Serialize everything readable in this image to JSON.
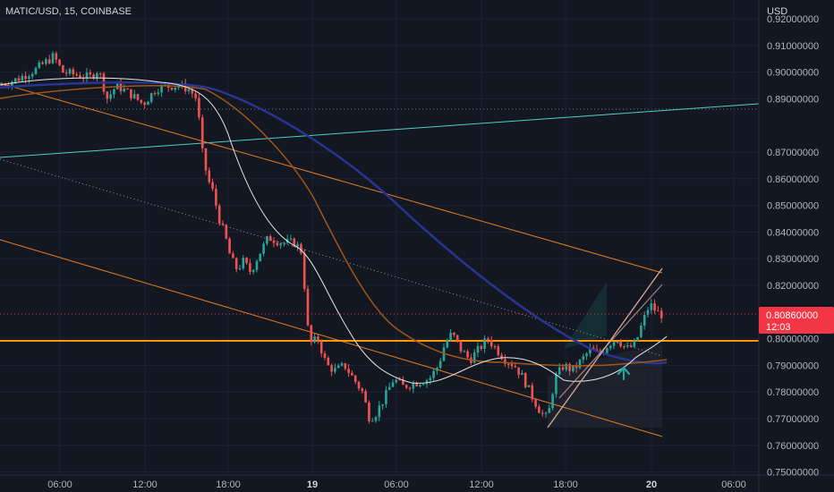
{
  "header": {
    "symbol_title": "MATIC/USD, 15, COINBASE",
    "currency": "USD"
  },
  "price_axis": {
    "labels": [
      "0.92000000",
      "0.91000000",
      "0.90000000",
      "0.89000000",
      "0.87000000",
      "0.86000000",
      "0.85000000",
      "0.84000000",
      "0.83000000",
      "0.82000000",
      "0.80000000",
      "0.79000000",
      "0.78000000",
      "0.77000000",
      "0.76000000",
      "0.75000000"
    ]
  },
  "time_axis": {
    "labels": [
      "06:00",
      "12:00",
      "18:00",
      "19",
      "06:00",
      "12:00",
      "18:00",
      "20",
      "06:00"
    ],
    "bold": [
      false,
      false,
      false,
      true,
      false,
      false,
      false,
      true,
      false
    ]
  },
  "current_price": {
    "price": "0.80860000",
    "countdown": "12:03",
    "color": "#f23645"
  },
  "colors": {
    "background": "#131722",
    "grid": "#1e2230",
    "up_candle": "#26a69a",
    "down_candle": "#ef5350",
    "support_line": "#ff9800",
    "channel_line": "#e07b1f",
    "trendline": "#4dd0c4",
    "ema_slow": "#283593",
    "ema_mid": "#a0561c",
    "ema_fast": "#e8e6e3",
    "arrow": "#26a69a"
  },
  "icons": {
    "up_arrow": "up-arrow-icon"
  }
}
